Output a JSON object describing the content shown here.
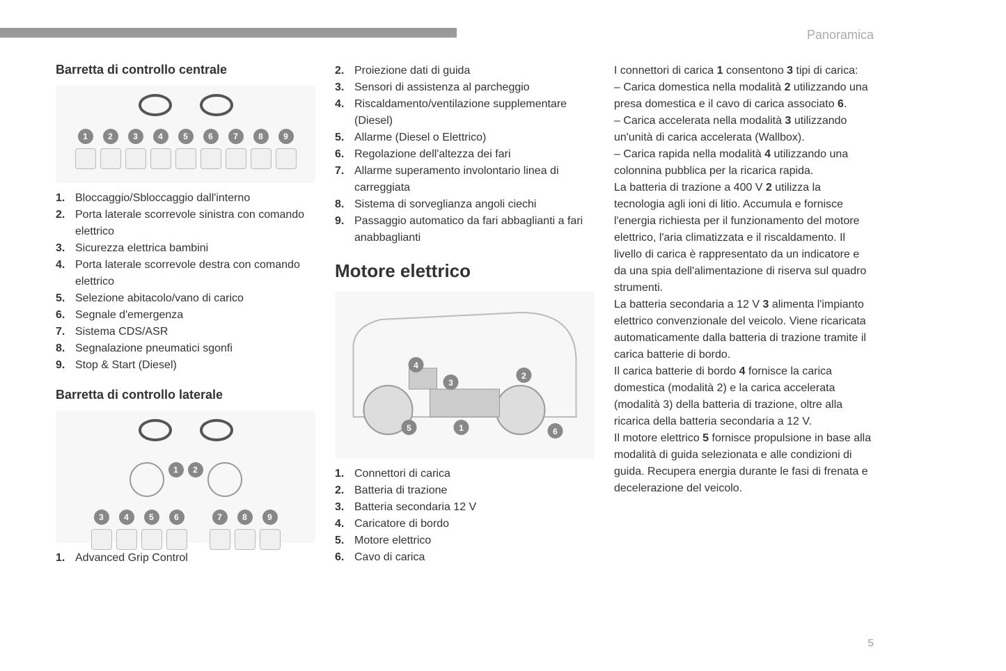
{
  "header": {
    "section": "Panoramica",
    "page_number": "5"
  },
  "col1": {
    "section_a": {
      "title": "Barretta di controllo centrale",
      "items": [
        {
          "n": "1.",
          "t": "Bloccaggio/Sbloccaggio dall'interno"
        },
        {
          "n": "2.",
          "t": "Porta laterale scorrevole sinistra con comando elettrico"
        },
        {
          "n": "3.",
          "t": "Sicurezza elettrica bambini"
        },
        {
          "n": "4.",
          "t": "Porta laterale scorrevole destra con comando elettrico"
        },
        {
          "n": "5.",
          "t": "Selezione abitacolo/vano di carico"
        },
        {
          "n": "6.",
          "t": "Segnale d'emergenza"
        },
        {
          "n": "7.",
          "t": "Sistema CDS/ASR"
        },
        {
          "n": "8.",
          "t": "Segnalazione pneumatici sgonfi"
        },
        {
          "n": "9.",
          "t": "Stop & Start (Diesel)"
        }
      ]
    },
    "section_b": {
      "title": "Barretta di controllo laterale",
      "items": [
        {
          "n": "1.",
          "t": "Advanced Grip Control"
        }
      ]
    }
  },
  "col2": {
    "cont_items": [
      {
        "n": "2.",
        "t": "Proiezione dati di guida"
      },
      {
        "n": "3.",
        "t": "Sensori di assistenza al parcheggio"
      },
      {
        "n": "4.",
        "t": "Riscaldamento/ventilazione supplementare (Diesel)"
      },
      {
        "n": "5.",
        "t": "Allarme (Diesel o Elettrico)"
      },
      {
        "n": "6.",
        "t": "Regolazione dell'altezza dei fari"
      },
      {
        "n": "7.",
        "t": "Allarme superamento involontario linea di carreggiata"
      },
      {
        "n": "8.",
        "t": "Sistema di sorveglianza angoli ciechi"
      },
      {
        "n": "9.",
        "t": "Passaggio automatico da fari abbaglianti a fari anabbaglianti"
      }
    ],
    "section_c": {
      "title": "Motore elettrico",
      "items": [
        {
          "n": "1.",
          "t": "Connettori di carica"
        },
        {
          "n": "2.",
          "t": "Batteria di trazione"
        },
        {
          "n": "3.",
          "t": "Batteria secondaria 12 V"
        },
        {
          "n": "4.",
          "t": "Caricatore di bordo"
        },
        {
          "n": "5.",
          "t": "Motore elettrico"
        },
        {
          "n": "6.",
          "t": "Cavo di carica"
        }
      ]
    }
  },
  "col3": {
    "paragraphs": [
      "I connettori di carica 1 consentono 3 tipi di carica:",
      "–  Carica domestica nella modalità 2 utilizzando una presa domestica e il cavo di carica associato 6.",
      "–  Carica accelerata nella modalità 3 utilizzando un'unità di carica accelerata (Wallbox).",
      "–  Carica rapida nella modalità 4 utilizzando una colonnina pubblica per la ricarica rapida.",
      "La batteria di trazione a 400 V 2 utilizza la tecnologia agli ioni di litio. Accumula e fornisce l'energia richiesta per il funzionamento del motore elettrico, l'aria climatizzata e il riscaldamento. Il livello di carica è rappresentato da un indicatore e da una spia dell'alimentazione di riserva sul quadro strumenti.",
      "La batteria secondaria a 12 V 3 alimenta l'impianto elettrico convenzionale del veicolo. Viene ricaricata automaticamente dalla batteria di trazione tramite il carica batterie di bordo.",
      "Il carica batterie di bordo 4 fornisce la carica domestica (modalità 2) e la carica accelerata (modalità 3) della batteria di trazione, oltre alla ricarica della batteria secondaria a 12 V.",
      "Il motore elettrico 5 fornisce propulsione in base alla modalità di guida selezionata e alle condizioni di guida. Recupera energia durante le fasi di frenata e decelerazione del veicolo."
    ]
  },
  "style": {
    "text_color": "#333333",
    "muted_color": "#aaaaaa",
    "bar_color": "#999999",
    "background": "#ffffff",
    "title_fontsize": 18,
    "h2_fontsize": 26,
    "body_fontsize": 16
  }
}
